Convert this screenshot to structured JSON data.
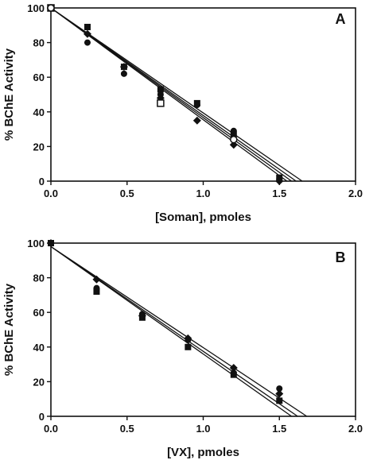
{
  "chart_data": [
    {
      "type": "scatter",
      "panel_label": "A",
      "xlabel": "[Soman], pmoles",
      "ylabel": "% BChE Activity",
      "xlim": [
        0.0,
        2.0
      ],
      "ylim": [
        0,
        100
      ],
      "xticks": [
        "0.0",
        "0.5",
        "1.0",
        "1.5",
        "2.0"
      ],
      "yticks": [
        "0",
        "20",
        "40",
        "60",
        "80",
        "100"
      ],
      "grid": false,
      "series": [
        {
          "marker": "square-filled",
          "x": [
            0,
            0.24,
            0.48,
            0.72,
            0.96,
            1.2,
            1.5
          ],
          "y": [
            100,
            89,
            66,
            53,
            45,
            27,
            2
          ]
        },
        {
          "marker": "circle-filled",
          "x": [
            0,
            0.24,
            0.48,
            0.72,
            0.96,
            1.2,
            1.5
          ],
          "y": [
            100,
            80,
            62,
            50,
            44,
            29,
            1
          ]
        },
        {
          "marker": "diamond-filled",
          "x": [
            0,
            0.24,
            0.48,
            0.72,
            0.96,
            1.2,
            1.5
          ],
          "y": [
            100,
            85,
            66,
            48,
            35,
            21,
            0
          ]
        },
        {
          "marker": "square-open",
          "x": [
            0,
            0.72
          ],
          "y": [
            100,
            45
          ]
        },
        {
          "marker": "circle-open",
          "x": [
            0,
            1.2
          ],
          "y": [
            100,
            24
          ]
        }
      ],
      "fit_lines": [
        {
          "x0": 0,
          "y0": 100,
          "x_intercept": 1.55
        },
        {
          "x0": 0,
          "y0": 100,
          "x_intercept": 1.58
        },
        {
          "x0": 0,
          "y0": 100,
          "x_intercept": 1.61
        },
        {
          "x0": 0,
          "y0": 100,
          "x_intercept": 1.65
        }
      ]
    },
    {
      "type": "scatter",
      "panel_label": "B",
      "xlabel": "[VX], pmoles",
      "ylabel": "% BChE Activity",
      "xlim": [
        0.0,
        2.0
      ],
      "ylim": [
        0,
        100
      ],
      "xticks": [
        "0.0",
        "0.5",
        "1.0",
        "1.5",
        "2.0"
      ],
      "yticks": [
        "0",
        "20",
        "40",
        "60",
        "80",
        "100"
      ],
      "grid": false,
      "series": [
        {
          "marker": "square-filled",
          "x": [
            0,
            0.3,
            0.6,
            0.9,
            1.2,
            1.5
          ],
          "y": [
            100,
            72,
            57,
            40,
            24,
            9
          ]
        },
        {
          "marker": "circle-filled",
          "x": [
            0,
            0.3,
            0.6,
            0.9,
            1.2,
            1.5
          ],
          "y": [
            100,
            74,
            59,
            44,
            25,
            16
          ]
        },
        {
          "marker": "diamond-filled",
          "x": [
            0,
            0.3,
            0.6,
            0.9,
            1.2,
            1.5
          ],
          "y": [
            100,
            79,
            58,
            45,
            28,
            13
          ]
        }
      ],
      "fit_lines": [
        {
          "x0": 0,
          "y0": 98,
          "x_intercept": 1.58
        },
        {
          "x0": 0,
          "y0": 98,
          "x_intercept": 1.62
        },
        {
          "x0": 0,
          "y0": 98,
          "x_intercept": 1.68
        }
      ]
    }
  ]
}
